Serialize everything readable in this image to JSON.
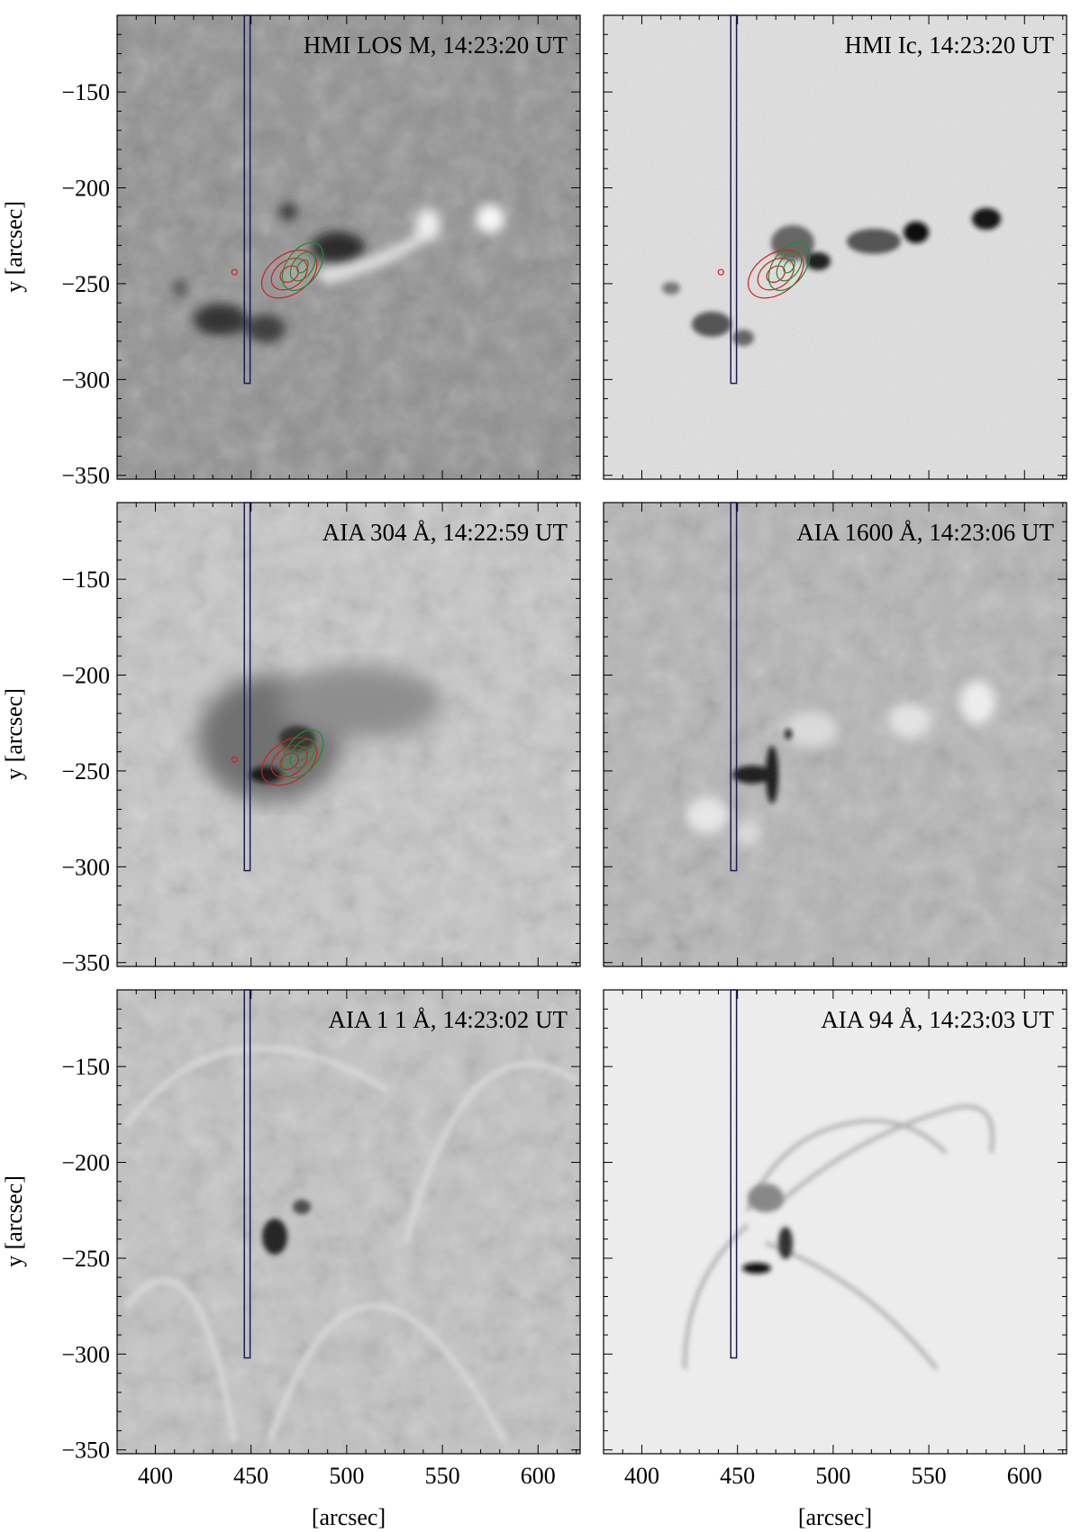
{
  "figure": {
    "y_axis_label": "y [arcsec]",
    "x_axis_label": "[arcsec]",
    "x_ticks": [
      "400",
      "450",
      "500",
      "550",
      "600"
    ],
    "y_ticks": [
      "−150",
      "−200",
      "−250",
      "−300",
      "−350"
    ],
    "panels": [
      {
        "id": "hmi-los",
        "title": "HMI LOS M, 14:23:20 UT",
        "base": "#8c8c8c",
        "contours": true
      },
      {
        "id": "hmi-ic",
        "title": "HMI Ic, 14:23:20 UT",
        "base": "#e3e3e3",
        "contours": true
      },
      {
        "id": "aia-304",
        "title": "AIA 304 Å, 14:22:59 UT",
        "base": "#c9c9c9",
        "contours": true
      },
      {
        "id": "aia-1600",
        "title": "AIA 1600 Å, 14:23:06 UT",
        "base": "#b5b5b5",
        "contours": false
      },
      {
        "id": "aia-131",
        "title": "AIA 1 1 Å, 14:23:02 UT",
        "base": "#c4c4c4",
        "contours": false
      },
      {
        "id": "aia-94",
        "title": "AIA 94 Å, 14:23:03 UT",
        "base": "#f2f2f2",
        "contours": false
      }
    ],
    "colors": {
      "slit": "#1a1a5a",
      "contour_red": "#d41e1e",
      "contour_green": "#1e8c2e"
    }
  }
}
